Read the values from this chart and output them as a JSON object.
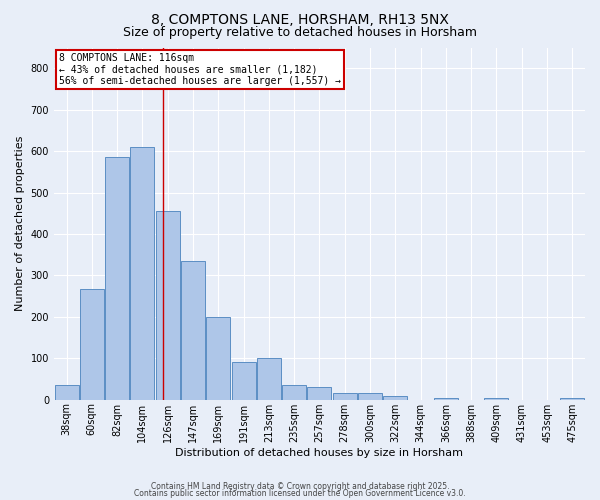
{
  "title1": "8, COMPTONS LANE, HORSHAM, RH13 5NX",
  "title2": "Size of property relative to detached houses in Horsham",
  "xlabel": "Distribution of detached houses by size in Horsham",
  "ylabel": "Number of detached properties",
  "bar_labels": [
    "38sqm",
    "60sqm",
    "82sqm",
    "104sqm",
    "126sqm",
    "147sqm",
    "169sqm",
    "191sqm",
    "213sqm",
    "235sqm",
    "257sqm",
    "278sqm",
    "300sqm",
    "322sqm",
    "344sqm",
    "366sqm",
    "388sqm",
    "409sqm",
    "431sqm",
    "453sqm",
    "475sqm"
  ],
  "bar_values": [
    35,
    268,
    585,
    610,
    455,
    335,
    200,
    90,
    100,
    35,
    30,
    15,
    15,
    10,
    0,
    5,
    0,
    5,
    0,
    0,
    5
  ],
  "bar_color": "#aec6e8",
  "bar_edge_color": "#5b8ec4",
  "annotation_line1": "8 COMPTONS LANE: 116sqm",
  "annotation_line2": "← 43% of detached houses are smaller (1,182)",
  "annotation_line3": "56% of semi-detached houses are larger (1,557) →",
  "annotation_box_color": "#ffffff",
  "annotation_border_color": "#cc0000",
  "vertical_line_color": "#cc0000",
  "vertical_line_x": 3.82,
  "ylim": [
    0,
    850
  ],
  "yticks": [
    0,
    100,
    200,
    300,
    400,
    500,
    600,
    700,
    800
  ],
  "background_color": "#e8eef8",
  "grid_color": "#ffffff",
  "footer1": "Contains HM Land Registry data © Crown copyright and database right 2025.",
  "footer2": "Contains public sector information licensed under the Open Government Licence v3.0.",
  "title_fontsize": 10,
  "subtitle_fontsize": 9,
  "ylabel_fontsize": 8,
  "xlabel_fontsize": 8,
  "tick_fontsize": 7,
  "annot_fontsize": 7
}
